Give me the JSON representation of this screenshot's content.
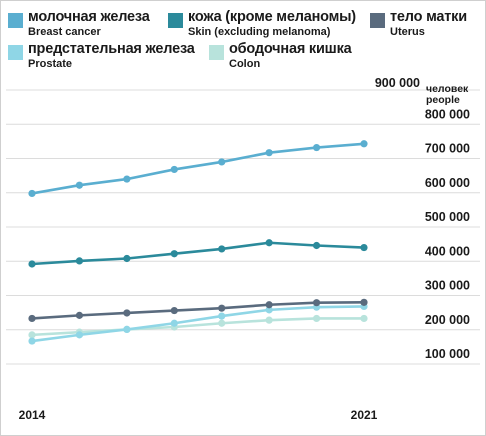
{
  "legend": {
    "breast": {
      "ru": "молочная железа",
      "en": "Breast cancer",
      "color": "#5aaed0"
    },
    "skin": {
      "ru": "кожа (кроме меланомы)",
      "en": "Skin (excluding melanoma)",
      "color": "#2b8a9b"
    },
    "uterus": {
      "ru": "тело матки",
      "en": "Uterus",
      "color": "#5a6b7e"
    },
    "prostate": {
      "ru": "предстательная железа",
      "en": "Prostate",
      "color": "#8fd6e6"
    },
    "colon": {
      "ru": "ободочная кишка",
      "en": "Colon",
      "color": "#b8e3dc"
    }
  },
  "chart_data": {
    "type": "line",
    "title": "",
    "x": [
      2014,
      2015,
      2016,
      2017,
      2018,
      2019,
      2020,
      2021
    ],
    "xticks": [
      "2014",
      "2021"
    ],
    "ylim": [
      100000,
      900000
    ],
    "yticks": [
      "900 000",
      "800 000",
      "700 000",
      "600 000",
      "500 000",
      "400 000",
      "300 000",
      "200 000",
      "100 000"
    ],
    "ylabel": "человек\npeople",
    "grid": true,
    "series": [
      {
        "name": "молочная железа / Breast cancer",
        "color": "#5aaed0",
        "values": [
          598000,
          622000,
          640000,
          668000,
          690000,
          717000,
          732000,
          743000
        ]
      },
      {
        "name": "кожа (кроме меланомы) / Skin (excluding melanoma)",
        "color": "#2b8a9b",
        "values": [
          392000,
          401000,
          408000,
          422000,
          436000,
          454000,
          446000,
          440000
        ]
      },
      {
        "name": "тело матки / Uterus",
        "color": "#5a6b7e",
        "values": [
          233000,
          242000,
          249000,
          256000,
          263000,
          273000,
          279000,
          280000
        ]
      },
      {
        "name": "предстательная железа / Prostate",
        "color": "#8fd6e6",
        "values": [
          167000,
          185000,
          201000,
          219000,
          240000,
          258000,
          266000,
          268000
        ]
      },
      {
        "name": "ободочная кишка / Colon",
        "color": "#b8e3dc",
        "values": [
          185000,
          193000,
          201000,
          208000,
          219000,
          228000,
          233000,
          233000
        ]
      }
    ]
  }
}
